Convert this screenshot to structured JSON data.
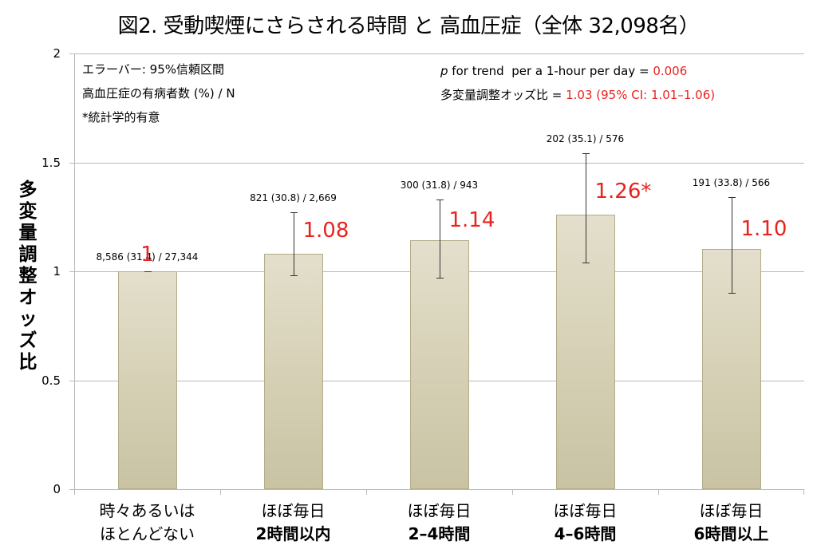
{
  "title": "図2. 受動喫煙にさらされる時間 と 高血圧症（全体 32,098名）",
  "legend": {
    "line1": "エラーバー: 95%信頼区間",
    "line2": "高血圧症の有病者数 (%) / N",
    "line3": "*統計学的有意"
  },
  "stats": {
    "trend_prefix_italic": "p",
    "trend_text": " for trend  per a 1-hour per day = ",
    "trend_value": "0.006",
    "or_text": "多変量調整オッズ比 = ",
    "or_value": "1.03 (95% CI: 1.01–1.06)"
  },
  "colors": {
    "accent_red": "#e8231f",
    "bar_fill_top": "#e3dfcc",
    "bar_fill_bottom": "#c9c3a4",
    "gridline": "#b8b8b8"
  },
  "chart_data": {
    "type": "bar",
    "title": "図2. 受動喫煙にさらされる時間 と 高血圧症（全体 32,098名）",
    "xlabel": "",
    "ylabel": "多変量調整オッズ比",
    "ylim": [
      0,
      2
    ],
    "yticks": [
      "0",
      "0.5",
      "1",
      "1.5",
      "2"
    ],
    "grid": true,
    "categories": [
      "時々あるいは ほとんどない",
      "ほぼ毎日 2時間以内",
      "ほぼ毎日 2–4時間",
      "ほぼ毎日 4–6時間",
      "ほぼ毎日 6時間以上"
    ],
    "values": [
      1.0,
      1.08,
      1.14,
      1.26,
      1.1
    ],
    "ci_lower": [
      1.0,
      0.98,
      0.97,
      1.04,
      0.9
    ],
    "ci_upper": [
      1.0,
      1.27,
      1.33,
      1.54,
      1.34
    ],
    "value_labels": [
      "1",
      "1.08",
      "1.14",
      "1.26*",
      "1.10"
    ],
    "n_labels": [
      "8,586 (31.4) / 27,344",
      "821 (30.8) / 2,669",
      "300 (31.8) / 943",
      "202 (35.1) / 576",
      "191 (33.8) / 566"
    ],
    "significant": [
      false,
      false,
      false,
      true,
      false
    ],
    "annotations": [
      "エラーバー: 95%信頼区間",
      "高血圧症の有病者数 (%) / N",
      "*統計学的有意",
      "p for trend per a 1-hour per day = 0.006",
      "多変量調整オッズ比 = 1.03 (95% CI: 1.01–1.06)"
    ]
  },
  "xaxis": {
    "categories": [
      {
        "line1": "時々あるいは",
        "line2": "ほとんどない"
      },
      {
        "line1": "ほぼ毎日",
        "line2": "2時間以内"
      },
      {
        "line1": "ほぼ毎日",
        "line2": "2–4時間"
      },
      {
        "line1": "ほぼ毎日",
        "line2": "4–6時間"
      },
      {
        "line1": "ほぼ毎日",
        "line2": "6時間以上"
      }
    ]
  },
  "yaxis": {
    "label_chars": [
      "多",
      "変",
      "量",
      "調",
      "整",
      "オ",
      "ッ",
      "ズ",
      "比"
    ],
    "ticks": [
      "2",
      "1.5",
      "1",
      "0.5",
      "0"
    ]
  }
}
